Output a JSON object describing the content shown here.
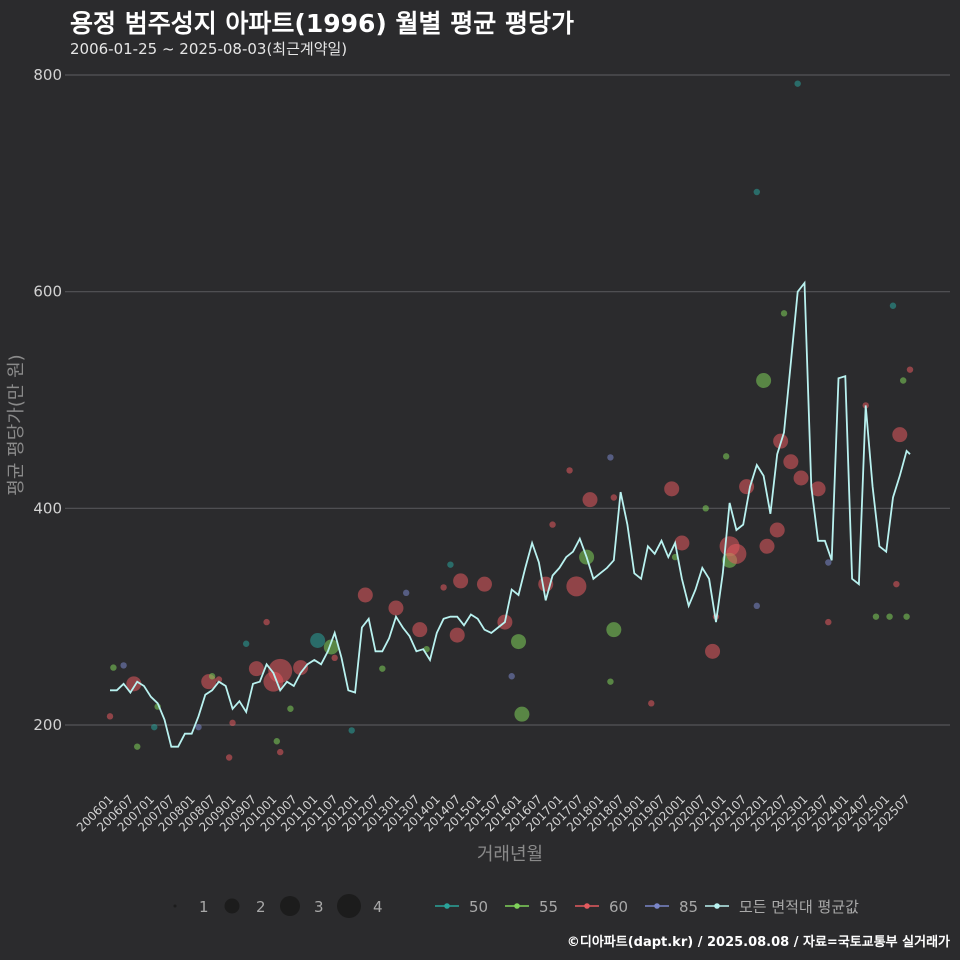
{
  "header": {
    "title": "용정 범주성지 아파트(1996) 월별 평균 평당가",
    "subtitle": "2006-01-25 ~ 2025-08-03(최근계약일)"
  },
  "footer": "©디아파트(dapt.kr) / 2025.08.08 / 자료=국토교통부 실거래가",
  "colors": {
    "50": "#2aa39a",
    "55": "#7fd15a",
    "60": "#e35a5e",
    "85": "#7a86c8",
    "avg": "#b9f2f0",
    "grid": "#555558",
    "bg": "#2b2b2d"
  },
  "chart_data": {
    "type": "line",
    "xlabel": "거래년월",
    "ylabel": "평균 평당가(만 원)",
    "ylim": [
      140,
      800
    ],
    "yticks": [
      200,
      400,
      600,
      800
    ],
    "x_ticks": [
      "200601",
      "200607",
      "200701",
      "200707",
      "200801",
      "200807",
      "200901",
      "200907",
      "201001",
      "201007",
      "201101",
      "201107",
      "201201",
      "201207",
      "201301",
      "201307",
      "201401",
      "201407",
      "201501",
      "201507",
      "201601",
      "201607",
      "201701",
      "201707",
      "201801",
      "201807",
      "201901",
      "201907",
      "202001",
      "202007",
      "202101",
      "202107",
      "202201",
      "202207",
      "202301",
      "202307",
      "202401",
      "202407",
      "202501",
      "202507"
    ],
    "grid": true,
    "legend_position": "bottom",
    "size_legend": {
      "values": [
        "1",
        "2",
        "3",
        "4"
      ]
    },
    "series": [
      {
        "name": "50",
        "kind": "points"
      },
      {
        "name": "55",
        "kind": "points"
      },
      {
        "name": "60",
        "kind": "points"
      },
      {
        "name": "85",
        "kind": "points"
      },
      {
        "name": "모든 면적대 평균값",
        "kind": "line"
      }
    ],
    "avg_line": [
      [
        "2006-01",
        232
      ],
      [
        "2006-03",
        232
      ],
      [
        "2006-05",
        238
      ],
      [
        "2006-07",
        230
      ],
      [
        "2006-09",
        240
      ],
      [
        "2006-11",
        236
      ],
      [
        "2007-01",
        226
      ],
      [
        "2007-03",
        220
      ],
      [
        "2007-05",
        205
      ],
      [
        "2007-07",
        180
      ],
      [
        "2007-09",
        180
      ],
      [
        "2007-11",
        192
      ],
      [
        "2008-01",
        192
      ],
      [
        "2008-03",
        208
      ],
      [
        "2008-05",
        228
      ],
      [
        "2008-07",
        232
      ],
      [
        "2008-09",
        240
      ],
      [
        "2008-11",
        236
      ],
      [
        "2009-01",
        215
      ],
      [
        "2009-03",
        222
      ],
      [
        "2009-05",
        212
      ],
      [
        "2009-07",
        238
      ],
      [
        "2009-09",
        240
      ],
      [
        "2009-11",
        256
      ],
      [
        "2010-01",
        248
      ],
      [
        "2010-03",
        232
      ],
      [
        "2010-05",
        240
      ],
      [
        "2010-07",
        236
      ],
      [
        "2010-09",
        248
      ],
      [
        "2010-11",
        256
      ],
      [
        "2011-01",
        260
      ],
      [
        "2011-03",
        256
      ],
      [
        "2011-05",
        268
      ],
      [
        "2011-07",
        285
      ],
      [
        "2011-09",
        262
      ],
      [
        "2011-11",
        232
      ],
      [
        "2012-01",
        230
      ],
      [
        "2012-03",
        290
      ],
      [
        "2012-05",
        298
      ],
      [
        "2012-07",
        268
      ],
      [
        "2012-09",
        268
      ],
      [
        "2012-11",
        280
      ],
      [
        "2013-01",
        300
      ],
      [
        "2013-03",
        290
      ],
      [
        "2013-05",
        282
      ],
      [
        "2013-07",
        268
      ],
      [
        "2013-09",
        270
      ],
      [
        "2013-11",
        260
      ],
      [
        "2014-01",
        285
      ],
      [
        "2014-03",
        298
      ],
      [
        "2014-05",
        300
      ],
      [
        "2014-07",
        300
      ],
      [
        "2014-09",
        292
      ],
      [
        "2014-11",
        302
      ],
      [
        "2015-01",
        298
      ],
      [
        "2015-03",
        288
      ],
      [
        "2015-05",
        285
      ],
      [
        "2015-07",
        290
      ],
      [
        "2015-09",
        295
      ],
      [
        "2015-11",
        325
      ],
      [
        "2016-01",
        320
      ],
      [
        "2016-03",
        345
      ],
      [
        "2016-05",
        368
      ],
      [
        "2016-07",
        350
      ],
      [
        "2016-09",
        315
      ],
      [
        "2016-11",
        338
      ],
      [
        "2017-01",
        345
      ],
      [
        "2017-03",
        355
      ],
      [
        "2017-05",
        360
      ],
      [
        "2017-07",
        372
      ],
      [
        "2017-09",
        355
      ],
      [
        "2017-11",
        335
      ],
      [
        "2018-01",
        340
      ],
      [
        "2018-03",
        345
      ],
      [
        "2018-05",
        352
      ],
      [
        "2018-07",
        415
      ],
      [
        "2018-09",
        385
      ],
      [
        "2018-11",
        340
      ],
      [
        "2019-01",
        335
      ],
      [
        "2019-03",
        365
      ],
      [
        "2019-05",
        358
      ],
      [
        "2019-07",
        370
      ],
      [
        "2019-09",
        355
      ],
      [
        "2019-11",
        368
      ],
      [
        "2020-01",
        335
      ],
      [
        "2020-03",
        310
      ],
      [
        "2020-05",
        325
      ],
      [
        "2020-07",
        345
      ],
      [
        "2020-09",
        335
      ],
      [
        "2020-11",
        295
      ],
      [
        "2021-01",
        340
      ],
      [
        "2021-03",
        405
      ],
      [
        "2021-05",
        380
      ],
      [
        "2021-07",
        385
      ],
      [
        "2021-09",
        420
      ],
      [
        "2021-11",
        440
      ],
      [
        "2022-01",
        430
      ],
      [
        "2022-03",
        395
      ],
      [
        "2022-05",
        450
      ],
      [
        "2022-07",
        470
      ],
      [
        "2022-09",
        535
      ],
      [
        "2022-11",
        600
      ],
      [
        "2023-01",
        608
      ],
      [
        "2023-03",
        420
      ],
      [
        "2023-05",
        370
      ],
      [
        "2023-07",
        370
      ],
      [
        "2023-09",
        352
      ],
      [
        "2023-11",
        520
      ],
      [
        "2024-01",
        522
      ],
      [
        "2024-03",
        335
      ],
      [
        "2024-05",
        330
      ],
      [
        "2024-07",
        495
      ],
      [
        "2024-09",
        420
      ],
      [
        "2024-11",
        365
      ],
      [
        "2025-01",
        360
      ],
      [
        "2025-03",
        410
      ],
      [
        "2025-05",
        430
      ],
      [
        "2025-07",
        453
      ],
      [
        "2025-08",
        450
      ]
    ],
    "points": [
      {
        "date": "2006-01",
        "value": 208,
        "area": "60",
        "count": 1
      },
      {
        "date": "2006-02",
        "value": 253,
        "area": "55",
        "count": 1
      },
      {
        "date": "2006-05",
        "value": 255,
        "area": "85",
        "count": 1
      },
      {
        "date": "2006-08",
        "value": 238,
        "area": "60",
        "count": 2
      },
      {
        "date": "2006-09",
        "value": 180,
        "area": "55",
        "count": 1
      },
      {
        "date": "2007-02",
        "value": 198,
        "area": "50",
        "count": 1
      },
      {
        "date": "2007-03",
        "value": 217,
        "area": "55",
        "count": 1
      },
      {
        "date": "2008-03",
        "value": 198,
        "area": "85",
        "count": 1
      },
      {
        "date": "2008-06",
        "value": 240,
        "area": "60",
        "count": 2
      },
      {
        "date": "2008-07",
        "value": 245,
        "area": "55",
        "count": 1
      },
      {
        "date": "2008-09",
        "value": 242,
        "area": "60",
        "count": 1
      },
      {
        "date": "2008-12",
        "value": 170,
        "area": "60",
        "count": 1
      },
      {
        "date": "2009-01",
        "value": 202,
        "area": "60",
        "count": 1
      },
      {
        "date": "2009-05",
        "value": 275,
        "area": "50",
        "count": 1
      },
      {
        "date": "2009-08",
        "value": 252,
        "area": "60",
        "count": 2
      },
      {
        "date": "2009-11",
        "value": 295,
        "area": "60",
        "count": 1
      },
      {
        "date": "2010-01",
        "value": 240,
        "area": "60",
        "count": 3
      },
      {
        "date": "2010-03",
        "value": 250,
        "area": "60",
        "count": 4
      },
      {
        "date": "2010-02",
        "value": 185,
        "area": "55",
        "count": 1
      },
      {
        "date": "2010-03",
        "value": 175,
        "area": "60",
        "count": 1
      },
      {
        "date": "2010-06",
        "value": 215,
        "area": "55",
        "count": 1
      },
      {
        "date": "2010-09",
        "value": 253,
        "area": "60",
        "count": 2
      },
      {
        "date": "2011-02",
        "value": 278,
        "area": "50",
        "count": 2
      },
      {
        "date": "2011-06",
        "value": 272,
        "area": "55",
        "count": 2
      },
      {
        "date": "2011-07",
        "value": 262,
        "area": "60",
        "count": 1
      },
      {
        "date": "2011-12",
        "value": 195,
        "area": "50",
        "count": 1
      },
      {
        "date": "2012-04",
        "value": 320,
        "area": "60",
        "count": 2
      },
      {
        "date": "2012-09",
        "value": 252,
        "area": "55",
        "count": 1
      },
      {
        "date": "2013-01",
        "value": 308,
        "area": "60",
        "count": 2
      },
      {
        "date": "2013-04",
        "value": 322,
        "area": "85",
        "count": 1
      },
      {
        "date": "2013-08",
        "value": 288,
        "area": "60",
        "count": 2
      },
      {
        "date": "2013-10",
        "value": 270,
        "area": "55",
        "count": 1
      },
      {
        "date": "2014-03",
        "value": 327,
        "area": "60",
        "count": 1
      },
      {
        "date": "2014-08",
        "value": 333,
        "area": "60",
        "count": 2
      },
      {
        "date": "2014-07",
        "value": 283,
        "area": "60",
        "count": 2
      },
      {
        "date": "2014-05",
        "value": 348,
        "area": "50",
        "count": 1
      },
      {
        "date": "2015-03",
        "value": 330,
        "area": "60",
        "count": 2
      },
      {
        "date": "2015-09",
        "value": 295,
        "area": "60",
        "count": 2
      },
      {
        "date": "2015-11",
        "value": 245,
        "area": "85",
        "count": 1
      },
      {
        "date": "2016-01",
        "value": 277,
        "area": "55",
        "count": 2
      },
      {
        "date": "2016-02",
        "value": 210,
        "area": "55",
        "count": 2
      },
      {
        "date": "2016-09",
        "value": 330,
        "area": "60",
        "count": 2
      },
      {
        "date": "2016-11",
        "value": 385,
        "area": "60",
        "count": 1
      },
      {
        "date": "2017-04",
        "value": 435,
        "area": "60",
        "count": 1
      },
      {
        "date": "2017-06",
        "value": 328,
        "area": "60",
        "count": 3
      },
      {
        "date": "2017-09",
        "value": 355,
        "area": "55",
        "count": 2
      },
      {
        "date": "2017-10",
        "value": 408,
        "area": "60",
        "count": 2
      },
      {
        "date": "2018-04",
        "value": 240,
        "area": "55",
        "count": 1
      },
      {
        "date": "2018-04",
        "value": 447,
        "area": "85",
        "count": 1
      },
      {
        "date": "2018-05",
        "value": 288,
        "area": "55",
        "count": 2
      },
      {
        "date": "2018-05",
        "value": 410,
        "area": "60",
        "count": 1
      },
      {
        "date": "2019-04",
        "value": 220,
        "area": "60",
        "count": 1
      },
      {
        "date": "2019-10",
        "value": 418,
        "area": "60",
        "count": 2
      },
      {
        "date": "2019-11",
        "value": 355,
        "area": "55",
        "count": 1
      },
      {
        "date": "2020-01",
        "value": 368,
        "area": "60",
        "count": 2
      },
      {
        "date": "2020-08",
        "value": 400,
        "area": "55",
        "count": 1
      },
      {
        "date": "2020-10",
        "value": 268,
        "area": "60",
        "count": 2
      },
      {
        "date": "2020-11",
        "value": 300,
        "area": "60",
        "count": 1
      },
      {
        "date": "2021-02",
        "value": 448,
        "area": "55",
        "count": 1
      },
      {
        "date": "2021-03",
        "value": 365,
        "area": "60",
        "count": 3
      },
      {
        "date": "2021-03",
        "value": 352,
        "area": "55",
        "count": 2
      },
      {
        "date": "2021-05",
        "value": 358,
        "area": "60",
        "count": 3
      },
      {
        "date": "2021-08",
        "value": 420,
        "area": "60",
        "count": 2
      },
      {
        "date": "2021-11",
        "value": 310,
        "area": "85",
        "count": 1
      },
      {
        "date": "2021-11",
        "value": 692,
        "area": "50",
        "count": 1
      },
      {
        "date": "2022-01",
        "value": 518,
        "area": "55",
        "count": 2
      },
      {
        "date": "2022-02",
        "value": 365,
        "area": "60",
        "count": 2
      },
      {
        "date": "2022-05",
        "value": 380,
        "area": "60",
        "count": 2
      },
      {
        "date": "2022-06",
        "value": 462,
        "area": "60",
        "count": 2
      },
      {
        "date": "2022-07",
        "value": 580,
        "area": "55",
        "count": 1
      },
      {
        "date": "2022-09",
        "value": 443,
        "area": "60",
        "count": 2
      },
      {
        "date": "2022-11",
        "value": 792,
        "area": "50",
        "count": 1
      },
      {
        "date": "2022-12",
        "value": 428,
        "area": "60",
        "count": 2
      },
      {
        "date": "2023-05",
        "value": 418,
        "area": "60",
        "count": 2
      },
      {
        "date": "2023-08",
        "value": 350,
        "area": "85",
        "count": 1
      },
      {
        "date": "2023-08",
        "value": 295,
        "area": "60",
        "count": 1
      },
      {
        "date": "2024-07",
        "value": 495,
        "area": "60",
        "count": 1
      },
      {
        "date": "2024-10",
        "value": 300,
        "area": "55",
        "count": 1
      },
      {
        "date": "2025-02",
        "value": 300,
        "area": "55",
        "count": 1
      },
      {
        "date": "2025-03",
        "value": 587,
        "area": "50",
        "count": 1
      },
      {
        "date": "2025-04",
        "value": 330,
        "area": "60",
        "count": 1
      },
      {
        "date": "2025-05",
        "value": 468,
        "area": "60",
        "count": 2
      },
      {
        "date": "2025-06",
        "value": 518,
        "area": "55",
        "count": 1
      },
      {
        "date": "2025-07",
        "value": 300,
        "area": "55",
        "count": 1
      },
      {
        "date": "2025-08",
        "value": 528,
        "area": "60",
        "count": 1
      }
    ]
  }
}
